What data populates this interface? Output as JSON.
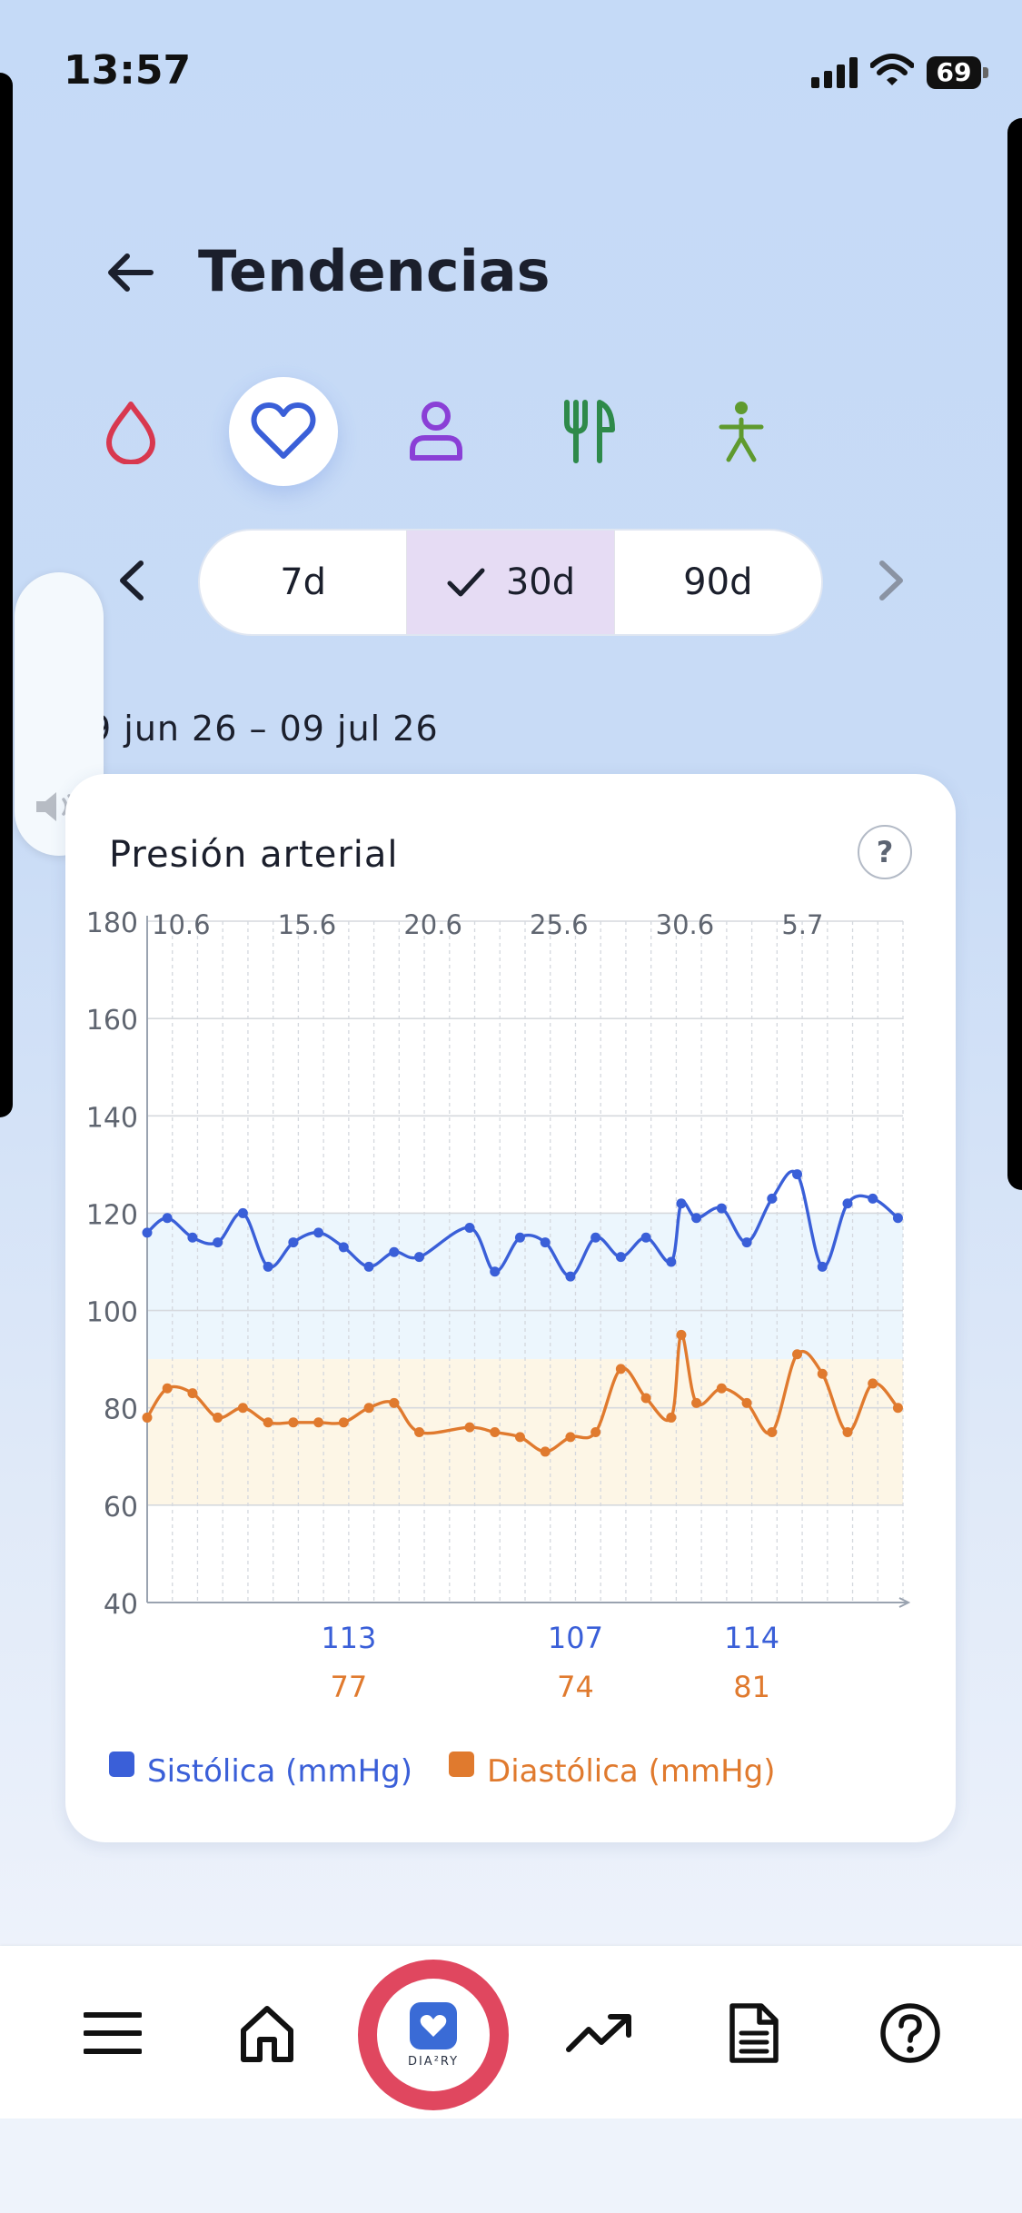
{
  "status_bar": {
    "time": "13:57",
    "battery": "69"
  },
  "header": {
    "title": "Tendencias"
  },
  "categories": [
    {
      "name": "glucose",
      "icon": "drop-icon",
      "active": false
    },
    {
      "name": "heart",
      "icon": "heart-icon",
      "active": true
    },
    {
      "name": "weight",
      "icon": "person-icon",
      "active": false
    },
    {
      "name": "food",
      "icon": "fork-knife-icon",
      "active": false
    },
    {
      "name": "activity",
      "icon": "walking-figure-icon",
      "active": false
    }
  ],
  "range": {
    "options": [
      {
        "label": "7d",
        "selected": false
      },
      {
        "label": "30d",
        "selected": true
      },
      {
        "label": "90d",
        "selected": false
      }
    ],
    "date_label": "9 jun 26 – 09 jul 26"
  },
  "card": {
    "title": "Presión arterial",
    "help": "?"
  },
  "chart_data": {
    "type": "line",
    "ylim": [
      40,
      180
    ],
    "yticks": [
      180,
      160,
      140,
      120,
      100,
      80,
      60,
      40
    ],
    "xticks": [
      "10.6",
      "15.6",
      "20.6",
      "25.6",
      "30.6",
      "5.7"
    ],
    "x_range": [
      10,
      40
    ],
    "bands": [
      {
        "from": 90,
        "to": 120,
        "color": "#ecf6fd"
      },
      {
        "from": 60,
        "to": 90,
        "color": "#fdf6e6"
      }
    ],
    "series": [
      {
        "name": "Sistólica (mmHg)",
        "color": "#3a5fd8",
        "points": [
          [
            10,
            116
          ],
          [
            10.8,
            119
          ],
          [
            11.8,
            115
          ],
          [
            12.8,
            114
          ],
          [
            13.8,
            120
          ],
          [
            14.8,
            109
          ],
          [
            15.8,
            114
          ],
          [
            16.8,
            116
          ],
          [
            17.8,
            113
          ],
          [
            18.8,
            109
          ],
          [
            19.8,
            112
          ],
          [
            20.8,
            111
          ],
          [
            22.8,
            117
          ],
          [
            23.8,
            108
          ],
          [
            24.8,
            115
          ],
          [
            25.8,
            114
          ],
          [
            26.8,
            107
          ],
          [
            27.8,
            115
          ],
          [
            28.8,
            111
          ],
          [
            29.8,
            115
          ],
          [
            30.8,
            110
          ],
          [
            31.2,
            122
          ],
          [
            31.8,
            119
          ],
          [
            32.8,
            121
          ],
          [
            33.8,
            114
          ],
          [
            34.8,
            123
          ],
          [
            35.8,
            128
          ],
          [
            36.8,
            109
          ],
          [
            37.8,
            122
          ],
          [
            38.8,
            123
          ],
          [
            39.8,
            119
          ]
        ]
      },
      {
        "name": "Diastólica (mmHg)",
        "color": "#e07a2e",
        "points": [
          [
            10,
            78
          ],
          [
            10.8,
            84
          ],
          [
            11.8,
            83
          ],
          [
            12.8,
            78
          ],
          [
            13.8,
            80
          ],
          [
            14.8,
            77
          ],
          [
            15.8,
            77
          ],
          [
            16.8,
            77
          ],
          [
            17.8,
            77
          ],
          [
            18.8,
            80
          ],
          [
            19.8,
            81
          ],
          [
            20.8,
            75
          ],
          [
            22.8,
            76
          ],
          [
            23.8,
            75
          ],
          [
            24.8,
            74
          ],
          [
            25.8,
            71
          ],
          [
            26.8,
            74
          ],
          [
            27.8,
            75
          ],
          [
            28.8,
            88
          ],
          [
            29.8,
            82
          ],
          [
            30.8,
            78
          ],
          [
            31.2,
            95
          ],
          [
            31.8,
            81
          ],
          [
            32.8,
            84
          ],
          [
            33.8,
            81
          ],
          [
            34.8,
            75
          ],
          [
            35.8,
            91
          ],
          [
            36.8,
            87
          ],
          [
            37.8,
            75
          ],
          [
            38.8,
            85
          ],
          [
            39.8,
            80
          ]
        ]
      }
    ],
    "annotations": [
      {
        "x": 18,
        "sys": "113",
        "dia": "77"
      },
      {
        "x": 27,
        "sys": "107",
        "dia": "74"
      },
      {
        "x": 34,
        "sys": "114",
        "dia": "81"
      }
    ]
  },
  "legend": [
    {
      "label": "Sistólica (mmHg)",
      "color": "#3a5fd8"
    },
    {
      "label": "Diastólica (mmHg)",
      "color": "#e07a2e"
    }
  ],
  "bottom_nav": [
    {
      "name": "menu",
      "icon": "hamburger-menu-icon"
    },
    {
      "name": "home",
      "icon": "home-icon"
    },
    {
      "name": "diary",
      "icon": "app-logo-icon",
      "label": "DIA²RY"
    },
    {
      "name": "trends",
      "icon": "trending-up-icon"
    },
    {
      "name": "report",
      "icon": "document-icon"
    },
    {
      "name": "help",
      "icon": "help-circle-icon"
    }
  ]
}
